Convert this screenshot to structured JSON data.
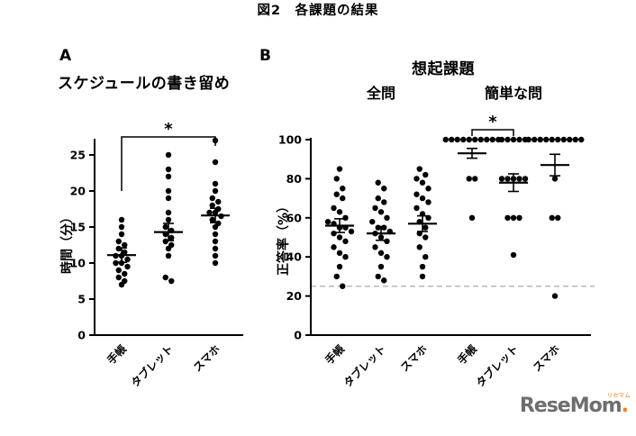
{
  "figure": {
    "caption": "図2　各課題の結果"
  },
  "logo": {
    "text": "ReseMom",
    "sub": "リセマム"
  },
  "chart_data": [
    {
      "type": "scatter",
      "panel_label": "A",
      "title": "スケジュールの書き留め",
      "ylabel": "時間（分）",
      "ylim": [
        0,
        27
      ],
      "yticks": [
        0,
        5,
        10,
        15,
        20,
        25
      ],
      "categories": [
        "手帳",
        "タブレット",
        "スマホ"
      ],
      "subpanels": [
        {
          "label": "",
          "groups": [
            {
              "category": "手帳",
              "mean": 11.1,
              "sem": 1.0,
              "values": [
                16,
                15,
                14,
                13,
                12.5,
                12,
                11.5,
                11,
                11,
                10.5,
                10,
                10,
                9.5,
                9,
                8.5,
                8,
                7.5,
                7
              ]
            },
            {
              "category": "タブレット",
              "mean": 14.3,
              "sem": 1.2,
              "values": [
                25,
                23,
                22,
                20,
                19,
                17,
                16,
                15,
                14.5,
                14,
                13.5,
                13,
                12.5,
                12,
                11,
                8,
                7.5
              ]
            },
            {
              "category": "スマホ",
              "mean": 16.6,
              "sem": 1.0,
              "values": [
                27,
                24,
                21,
                20,
                19,
                18.5,
                18,
                17.5,
                17,
                17,
                16.5,
                16,
                15.5,
                15,
                14,
                13,
                12,
                11,
                10
              ]
            }
          ],
          "significance": [
            {
              "from": 0,
              "to": 2,
              "label": "*"
            }
          ]
        }
      ]
    },
    {
      "type": "scatter",
      "panel_label": "B",
      "title": "想起課題",
      "ylabel": "正答率（%）",
      "ylim": [
        0,
        100
      ],
      "yticks": [
        0,
        20,
        40,
        60,
        80,
        100
      ],
      "dashed_line_y": 25,
      "categories": [
        "手帳",
        "タブレット",
        "スマホ"
      ],
      "subpanels": [
        {
          "label": "全問",
          "groups": [
            {
              "category": "手帳",
              "mean": 56,
              "sem": 3.5,
              "values": [
                85,
                80,
                75,
                72,
                70,
                65,
                63,
                60,
                58,
                57,
                55,
                55,
                53,
                52,
                50,
                48,
                45,
                42,
                40,
                35,
                30,
                25
              ]
            },
            {
              "category": "タブレット",
              "mean": 52,
              "sem": 3.5,
              "values": [
                78,
                75,
                70,
                68,
                65,
                63,
                60,
                58,
                55,
                55,
                53,
                52,
                50,
                48,
                45,
                42,
                40,
                35,
                30,
                28
              ]
            },
            {
              "category": "スマホ",
              "mean": 57,
              "sem": 4,
              "values": [
                85,
                82,
                80,
                78,
                75,
                72,
                70,
                68,
                65,
                62,
                60,
                58,
                55,
                52,
                50,
                45,
                40,
                35,
                30
              ]
            }
          ]
        },
        {
          "label": "簡単な問",
          "groups": [
            {
              "category": "手帳",
              "mean": 93,
              "sem": 2.5,
              "values": [
                100,
                100,
                100,
                100,
                100,
                100,
                100,
                100,
                100,
                100,
                80,
                80,
                60
              ]
            },
            {
              "category": "タブレット",
              "mean": 78,
              "sem": 4.5,
              "values": [
                100,
                100,
                100,
                100,
                100,
                80,
                80,
                80,
                80,
                80,
                60,
                60,
                60,
                41
              ]
            },
            {
              "category": "スマホ",
              "mean": 87,
              "sem": 5.5,
              "values": [
                100,
                100,
                100,
                100,
                100,
                100,
                100,
                100,
                100,
                100,
                80,
                60,
                60,
                20
              ]
            }
          ],
          "significance": [
            {
              "from": 0,
              "to": 1,
              "label": "*"
            }
          ]
        }
      ]
    }
  ]
}
